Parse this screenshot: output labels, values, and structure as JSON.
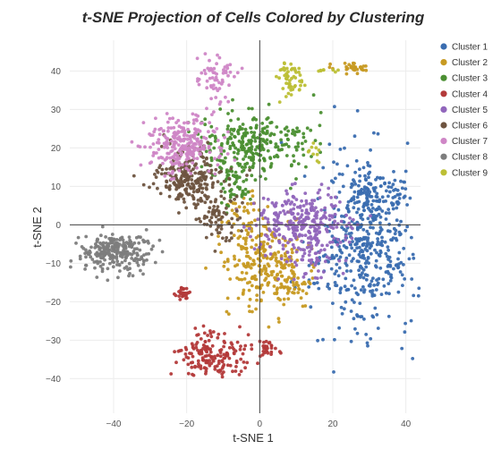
{
  "chart_data": {
    "type": "scatter",
    "title": "t-SNE Projection of Cells Colored by Clustering",
    "xlabel": "t-SNE 1",
    "ylabel": "t-SNE 2",
    "xlim": [
      -52,
      44
    ],
    "ylim": [
      -49,
      48
    ],
    "x_ticks": [
      -40,
      -20,
      0,
      20,
      40
    ],
    "y_ticks": [
      -40,
      -30,
      -20,
      -10,
      0,
      10,
      20,
      30,
      40
    ],
    "x_tick_labels": [
      "−40",
      "−20",
      "0",
      "20",
      "40"
    ],
    "y_tick_labels": [
      "−40",
      "−30",
      "−20",
      "−10",
      "0",
      "10",
      "20",
      "30",
      "40"
    ],
    "grid": true,
    "zero_lines": true,
    "legend_position": "right",
    "point_clouds_estimated": true,
    "series": [
      {
        "name": "Cluster 1",
        "color": "#3a6db0",
        "n": 560,
        "regions": [
          {
            "cx": 31,
            "cy": -5,
            "sx": 6.5,
            "sy": 12
          },
          {
            "cx": 22,
            "cy": -10,
            "sx": 5,
            "sy": 7
          },
          {
            "cx": 30,
            "cy": 8,
            "sx": 4,
            "sy": 3
          }
        ]
      },
      {
        "name": "Cluster 2",
        "color": "#c79a22",
        "n": 350,
        "regions": [
          {
            "cx": 1,
            "cy": -10,
            "sx": 6,
            "sy": 6
          },
          {
            "cx": -5,
            "cy": 2,
            "sx": 3.5,
            "sy": 3
          },
          {
            "cx": 8,
            "cy": -15,
            "sx": 3.5,
            "sy": 3
          },
          {
            "cx": 25,
            "cy": 41,
            "sx": 2.5,
            "sy": 0.6
          }
        ]
      },
      {
        "name": "Cluster 3",
        "color": "#4b8f32",
        "n": 340,
        "regions": [
          {
            "cx": -4,
            "cy": 21,
            "sx": 6,
            "sy": 4
          },
          {
            "cx": 10,
            "cy": 22,
            "sx": 4,
            "sy": 3
          },
          {
            "cx": -7,
            "cy": 10,
            "sx": 2.5,
            "sy": 3
          }
        ]
      },
      {
        "name": "Cluster 4",
        "color": "#b33a3a",
        "n": 230,
        "regions": [
          {
            "cx": -13,
            "cy": -34,
            "sx": 5,
            "sy": 3
          },
          {
            "cx": 2,
            "cy": -32,
            "sx": 2,
            "sy": 1.2
          },
          {
            "cx": -21,
            "cy": -18,
            "sx": 0.8,
            "sy": 1
          }
        ]
      },
      {
        "name": "Cluster 5",
        "color": "#9166bc",
        "n": 330,
        "regions": [
          {
            "cx": 12,
            "cy": 1,
            "sx": 7,
            "sy": 4
          },
          {
            "cx": 14,
            "cy": -7,
            "sx": 4,
            "sy": 4
          }
        ]
      },
      {
        "name": "Cluster 6",
        "color": "#6e5440",
        "n": 300,
        "regions": [
          {
            "cx": -19,
            "cy": 12,
            "sx": 5,
            "sy": 3.5
          },
          {
            "cx": -11,
            "cy": 0,
            "sx": 3,
            "sy": 3
          }
        ]
      },
      {
        "name": "Cluster 7",
        "color": "#cf86c6",
        "n": 320,
        "regions": [
          {
            "cx": -21,
            "cy": 21,
            "sx": 5,
            "sy": 3.5
          },
          {
            "cx": -12,
            "cy": 38,
            "sx": 2.5,
            "sy": 3
          }
        ]
      },
      {
        "name": "Cluster 8",
        "color": "#7d7d7d",
        "n": 260,
        "regions": [
          {
            "cx": -40,
            "cy": -7,
            "sx": 4.5,
            "sy": 2.5
          }
        ]
      },
      {
        "name": "Cluster 9",
        "color": "#bcbf35",
        "n": 70,
        "regions": [
          {
            "cx": 8,
            "cy": 38,
            "sx": 1.5,
            "sy": 2.2
          },
          {
            "cx": 15,
            "cy": 19,
            "sx": 1.5,
            "sy": 1
          },
          {
            "cx": 19,
            "cy": 40,
            "sx": 1.8,
            "sy": 0.5
          }
        ]
      }
    ]
  }
}
